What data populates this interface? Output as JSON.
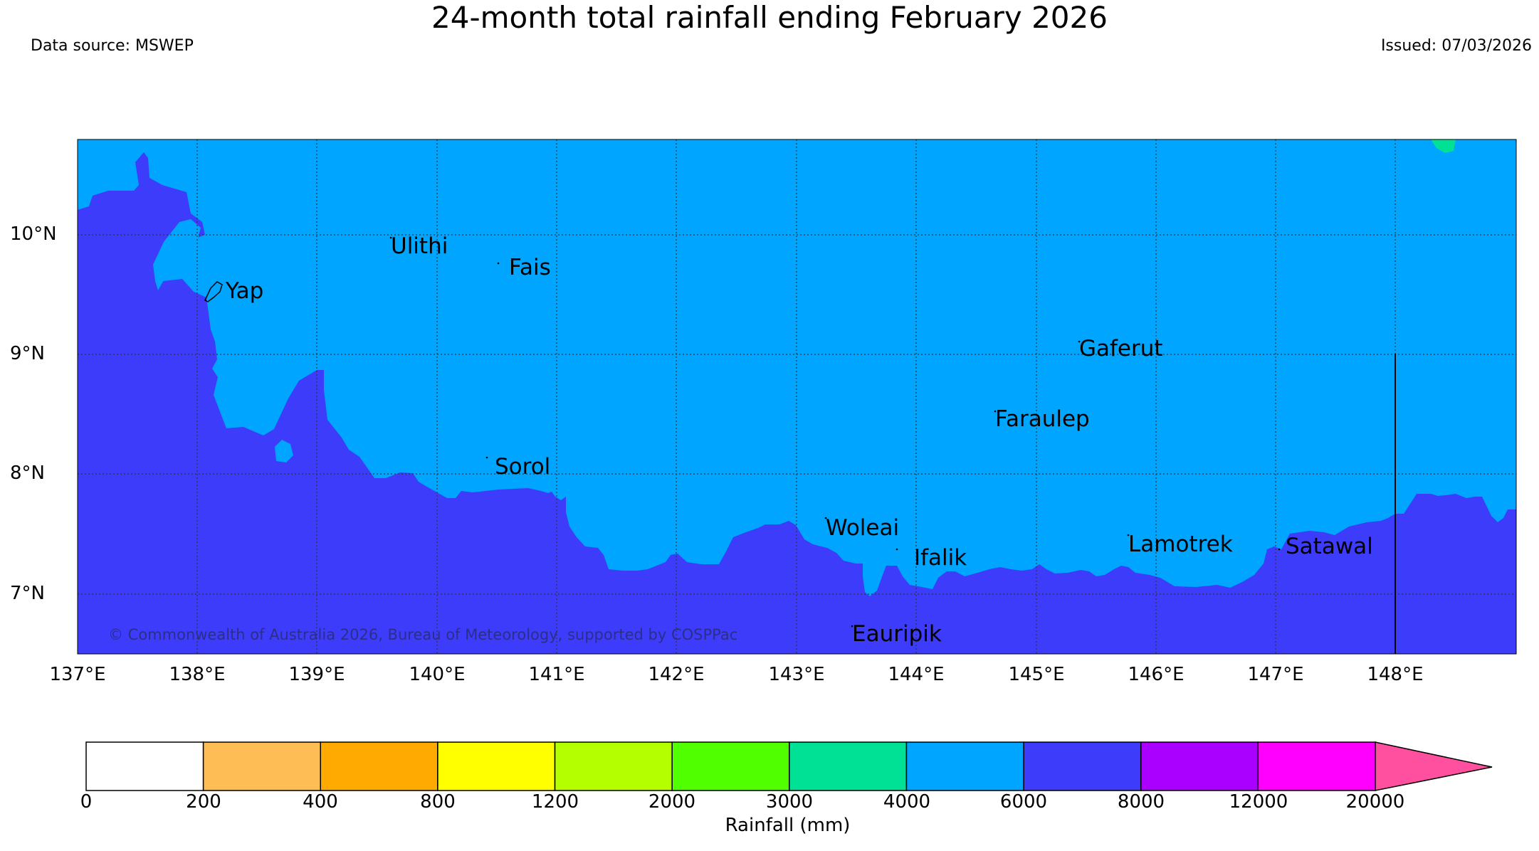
{
  "header": {
    "title": "24-month total rainfall ending February 2026",
    "source": "Data source: MSWEP",
    "issued": "Issued: 07/03/2026"
  },
  "map": {
    "lat_labels": [
      "10°N",
      "9°N",
      "8°N",
      "7°N"
    ],
    "lon_labels": [
      "137°E",
      "138°E",
      "139°E",
      "140°E",
      "141°E",
      "142°E",
      "143°E",
      "144°E",
      "145°E",
      "146°E",
      "147°E",
      "148°E"
    ],
    "places": [
      "Ulithi",
      "Fais",
      "Yap",
      "Gaferut",
      "Faraulep",
      "Sorol",
      "Woleai",
      "Ifalik",
      "Lamotrek",
      "Satawal",
      "Eauripik"
    ],
    "copyright": "© Commonwealth of Australia 2026, Bureau of Meteorology, supported by COSPPac",
    "region_colors": {
      "6000-8000": "#3c3cfa",
      "4000-6000": "#00a5ff",
      "3000-4000": "#00e196"
    }
  },
  "colorbar": {
    "ticks": [
      "0",
      "200",
      "400",
      "800",
      "1200",
      "2000",
      "3000",
      "4000",
      "6000",
      "8000",
      "12000",
      "20000"
    ],
    "colors": [
      "#ffffff",
      "#ffbe55",
      "#ffaa00",
      "#ffff00",
      "#b4ff00",
      "#50ff00",
      "#00e196",
      "#00a5ff",
      "#3c3cfa",
      "#aa00ff",
      "#ff00ff"
    ],
    "extend_color": "#ff50a0",
    "label": "Rainfall (mm)"
  }
}
